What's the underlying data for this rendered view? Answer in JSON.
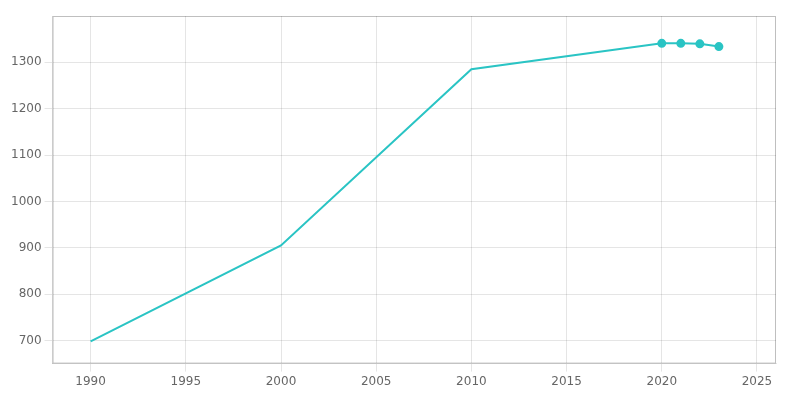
{
  "chart_data": {
    "type": "line",
    "x": [
      1990,
      2000,
      2010,
      2020,
      2021,
      2022,
      2023
    ],
    "series": [
      {
        "type": "line",
        "color": "#2ac4c4",
        "marker": "none",
        "values": [
          698,
          905,
          1285,
          1341,
          1341,
          1340,
          1334
        ]
      },
      {
        "type": "scatter",
        "color": "#2ac4c4",
        "marker": "o",
        "values": [
          null,
          null,
          null,
          1341,
          1341,
          1340,
          1334
        ]
      }
    ],
    "xlim": [
      1988,
      2026
    ],
    "ylim": [
      650,
      1400
    ],
    "xticks": [
      1990,
      1995,
      2000,
      2005,
      2010,
      2015,
      2020,
      2025
    ],
    "yticks": [
      700,
      800,
      900,
      1000,
      1100,
      1200,
      1300
    ],
    "grid": true
  }
}
